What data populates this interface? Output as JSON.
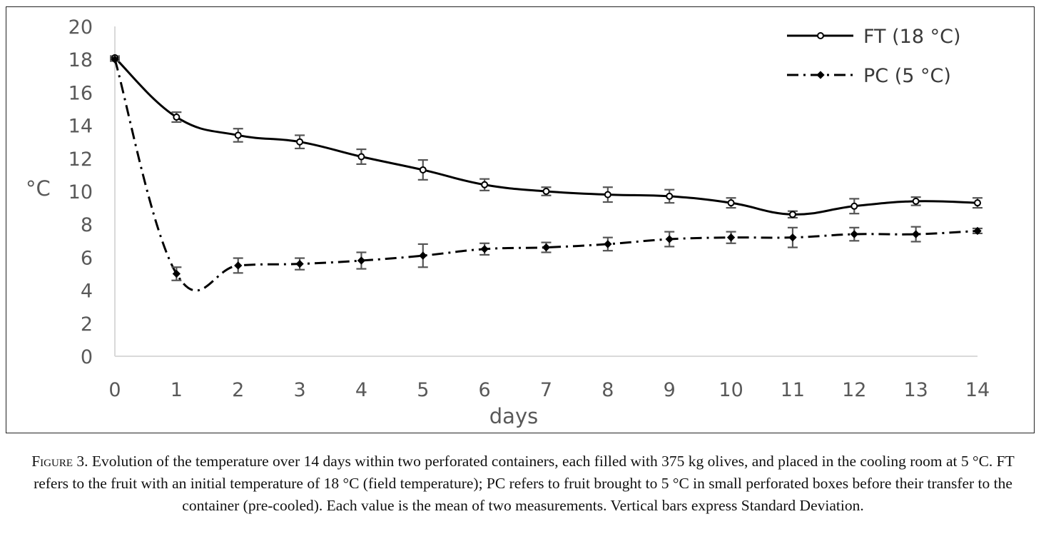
{
  "chart_data": {
    "type": "line",
    "xlabel": "days",
    "ylabel": "°C",
    "xlim": [
      0,
      14
    ],
    "ylim": [
      0,
      20
    ],
    "x_ticks": [
      "0",
      "1",
      "2",
      "3",
      "4",
      "5",
      "6",
      "7",
      "8",
      "9",
      "10",
      "11",
      "12",
      "13",
      "14"
    ],
    "y_ticks": [
      "0",
      "2",
      "4",
      "6",
      "8",
      "10",
      "12",
      "14",
      "16",
      "18",
      "20"
    ],
    "legend_position": "top-right",
    "grid": false,
    "x": [
      0,
      1,
      2,
      3,
      4,
      5,
      6,
      7,
      8,
      9,
      10,
      11,
      12,
      13,
      14
    ],
    "series": [
      {
        "name": "FT (18 °C)",
        "color": "#000000",
        "line_style": "solid",
        "marker": "open-circle",
        "values": [
          18.1,
          14.5,
          13.4,
          13.0,
          12.1,
          11.3,
          10.4,
          10.0,
          9.8,
          9.7,
          9.3,
          8.6,
          9.1,
          9.4,
          9.3
        ],
        "errors": [
          0.1,
          0.3,
          0.4,
          0.4,
          0.45,
          0.6,
          0.35,
          0.25,
          0.45,
          0.4,
          0.3,
          0.2,
          0.45,
          0.25,
          0.3
        ]
      },
      {
        "name": "PC (5 °C)",
        "color": "#000000",
        "line_style": "dash-dot",
        "marker": "filled-diamond",
        "values": [
          18.0,
          5.0,
          5.5,
          5.6,
          5.8,
          6.1,
          6.5,
          6.6,
          6.8,
          7.1,
          7.2,
          7.2,
          7.4,
          7.4,
          7.6
        ],
        "errors": [
          0.1,
          0.4,
          0.45,
          0.35,
          0.5,
          0.7,
          0.35,
          0.3,
          0.4,
          0.45,
          0.35,
          0.6,
          0.4,
          0.45,
          0.15
        ]
      }
    ]
  },
  "caption": {
    "label": "Figure 3.",
    "text": " Evolution of the temperature over 14 days within two perforated containers, each filled with 375 kg olives, and placed in the cooling room at 5 °C. FT refers to the fruit with an initial temperature of 18 °C (field temperature); PC refers to fruit brought to 5 °C in small perforated boxes before their transfer to the container (pre-cooled). Each value is the mean of two measurements. Vertical bars express Standard Deviation."
  }
}
